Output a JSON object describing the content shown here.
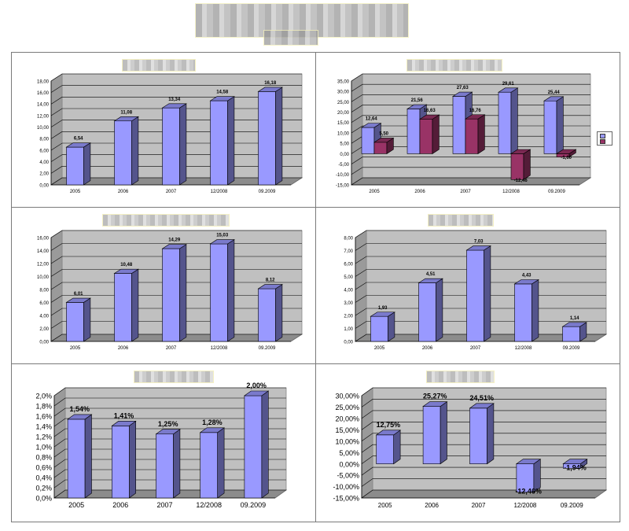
{
  "chart_data": [
    {
      "type": "bar",
      "categories": [
        "2005",
        "2006",
        "2007",
        "12/2008",
        "09.2009"
      ],
      "series": [
        {
          "values": [
            6.54,
            11.08,
            13.34,
            14.58,
            16.18
          ]
        }
      ],
      "value_labels": [
        "6,54",
        "11,08",
        "13,34",
        "14,58",
        "16,18"
      ],
      "yticks": [
        "0,00",
        "2,00",
        "4,00",
        "6,00",
        "8,00",
        "10,00",
        "12,00",
        "14,00",
        "16,00",
        "18,00"
      ],
      "ylim": [
        0,
        18
      ],
      "grid": true,
      "colors": [
        "#9999ff"
      ]
    },
    {
      "type": "bar",
      "categories": [
        "2005",
        "2006",
        "2007",
        "12/2008",
        "09.2009"
      ],
      "series": [
        {
          "values": [
            12.64,
            21.56,
            27.63,
            29.61,
            25.44
          ]
        },
        {
          "values": [
            5.5,
            16.63,
            16.76,
            -12.46,
            -1.6
          ]
        }
      ],
      "value_labels": [
        [
          "12,64",
          "21,56",
          "27,63",
          "29,61",
          "25,44"
        ],
        [
          "5,50",
          "16,63",
          "16,76",
          "-12,46",
          "-1,60"
        ]
      ],
      "yticks": [
        "-15,00",
        "-10,00",
        "-5,00",
        "0,00",
        "5,00",
        "10,00",
        "15,00",
        "20,00",
        "25,00",
        "30,00",
        "35,00"
      ],
      "ylim": [
        -15,
        35
      ],
      "grid": true,
      "legend": "right",
      "colors": [
        "#9999ff",
        "#993366"
      ]
    },
    {
      "type": "bar",
      "categories": [
        "2005",
        "2006",
        "2007",
        "12/2008",
        "09.2009"
      ],
      "series": [
        {
          "values": [
            6.01,
            10.48,
            14.29,
            15.03,
            8.12
          ]
        }
      ],
      "value_labels": [
        "6,01",
        "10,48",
        "14,29",
        "15,03",
        "8,12"
      ],
      "yticks": [
        "0,00",
        "2,00",
        "4,00",
        "6,00",
        "8,00",
        "10,00",
        "12,00",
        "14,00",
        "16,00"
      ],
      "ylim": [
        0,
        16
      ],
      "grid": true,
      "colors": [
        "#9999ff"
      ]
    },
    {
      "type": "bar",
      "categories": [
        "2005",
        "2006",
        "2007",
        "12/2008",
        "09.2009"
      ],
      "series": [
        {
          "values": [
            1.93,
            4.51,
            7.03,
            4.43,
            1.14
          ]
        }
      ],
      "value_labels": [
        "1,93",
        "4,51",
        "7,03",
        "4,43",
        "1,14"
      ],
      "yticks": [
        "0,00",
        "1,00",
        "2,00",
        "3,00",
        "4,00",
        "5,00",
        "6,00",
        "7,00",
        "8,00"
      ],
      "ylim": [
        0,
        8
      ],
      "grid": true,
      "colors": [
        "#9999ff"
      ]
    },
    {
      "type": "bar",
      "categories": [
        "2005",
        "2006",
        "2007",
        "12/2008",
        "09.2009"
      ],
      "series": [
        {
          "values": [
            1.54,
            1.41,
            1.25,
            1.28,
            2.0
          ]
        }
      ],
      "value_labels": [
        "1,54%",
        "1,41%",
        "1,25%",
        "1,28%",
        "2,00%"
      ],
      "yticks": [
        "0,0%",
        "0,2%",
        "0,4%",
        "0,6%",
        "0,8%",
        "1,0%",
        "1,2%",
        "1,4%",
        "1,6%",
        "1,8%",
        "2,0%"
      ],
      "ylim": [
        0,
        2.0
      ],
      "grid": true,
      "colors": [
        "#9999ff"
      ]
    },
    {
      "type": "bar",
      "categories": [
        "2005",
        "2006",
        "2007",
        "12/2008",
        "09.2009"
      ],
      "series": [
        {
          "values": [
            12.75,
            25.27,
            24.51,
            -12.46,
            -1.94
          ]
        }
      ],
      "value_labels": [
        "12,75%",
        "25,27%",
        "24,51%",
        "-12,46%",
        "-1,94%"
      ],
      "yticks": [
        "-15,00%",
        "-10,00%",
        "-5,00%",
        "0,00%",
        "5,00%",
        "10,00%",
        "15,00%",
        "20,00%",
        "25,00%",
        "30,00%"
      ],
      "ylim": [
        -15,
        30
      ],
      "grid": true,
      "colors": [
        "#9999ff"
      ]
    }
  ]
}
